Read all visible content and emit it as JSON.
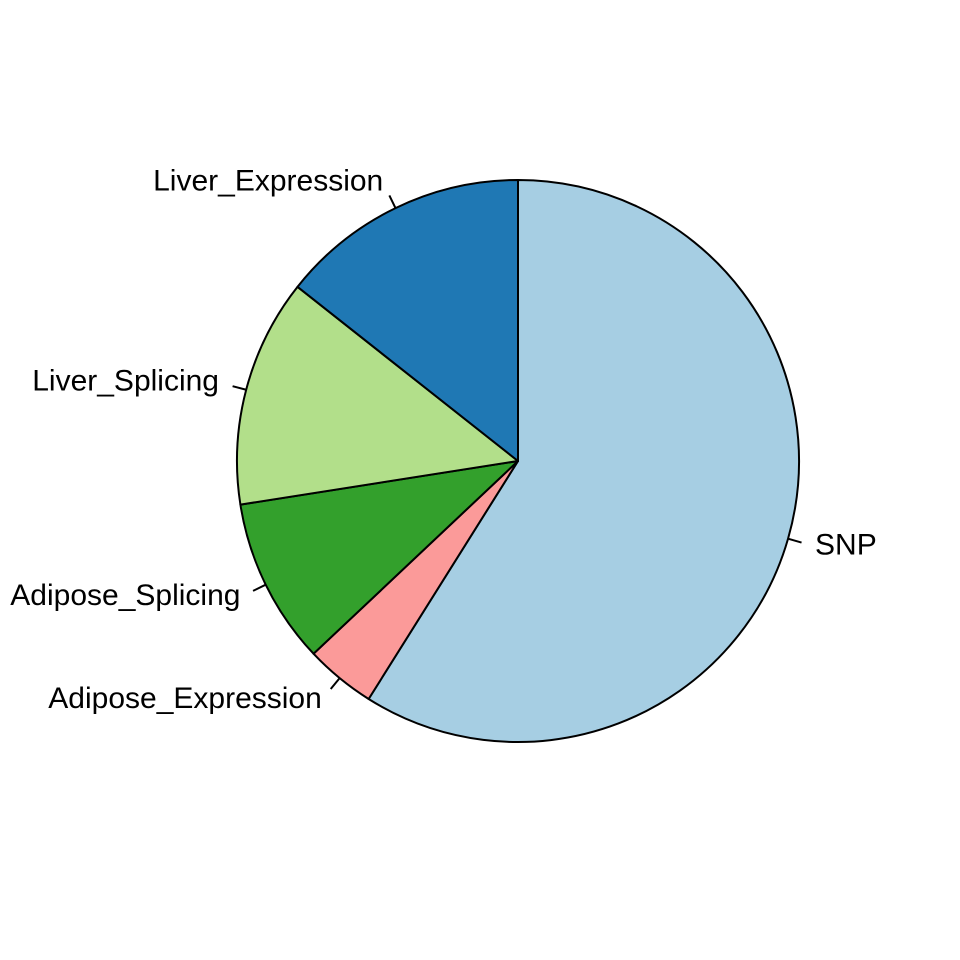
{
  "chart_data": {
    "type": "pie",
    "title": "",
    "direction": "clockwise",
    "start_angle_deg": 90,
    "slices": [
      {
        "label": "SNP",
        "value": 0.5892,
        "color": "#A6CEE3"
      },
      {
        "label": "Adipose_Expression",
        "value": 0.0405,
        "color": "#FB9A99"
      },
      {
        "label": "Adipose_Splicing",
        "value": 0.0955,
        "color": "#33A02C"
      },
      {
        "label": "Liver_Splicing",
        "value": 0.1312,
        "color": "#B2DF8A"
      },
      {
        "label": "Liver_Expression",
        "value": 0.1436,
        "color": "#1F78B4"
      }
    ]
  }
}
